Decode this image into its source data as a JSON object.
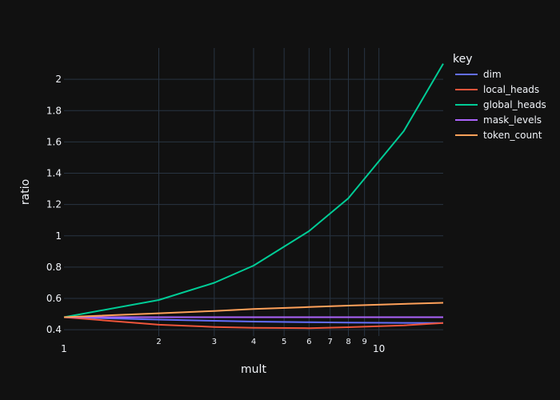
{
  "chart_data": {
    "type": "line",
    "xlabel": "mult",
    "ylabel": "ratio",
    "x_scale": "log",
    "xlim": [
      1,
      16
    ],
    "ylim": [
      0.36,
      2.2
    ],
    "grid": true,
    "background": "#111111",
    "legend": {
      "title": "key",
      "position": "right"
    },
    "x_ticks": [
      {
        "v": 1,
        "label": "1",
        "minor": false
      },
      {
        "v": 2,
        "label": "2",
        "minor": true
      },
      {
        "v": 3,
        "label": "3",
        "minor": true
      },
      {
        "v": 4,
        "label": "4",
        "minor": true
      },
      {
        "v": 5,
        "label": "5",
        "minor": true
      },
      {
        "v": 6,
        "label": "6",
        "minor": true
      },
      {
        "v": 7,
        "label": "7",
        "minor": true
      },
      {
        "v": 8,
        "label": "8",
        "minor": true
      },
      {
        "v": 9,
        "label": "9",
        "minor": true
      },
      {
        "v": 10,
        "label": "10",
        "minor": false
      }
    ],
    "y_ticks": [
      {
        "v": 0.4,
        "label": "0.4"
      },
      {
        "v": 0.6,
        "label": "0.6"
      },
      {
        "v": 0.8,
        "label": "0.8"
      },
      {
        "v": 1.0,
        "label": "1"
      },
      {
        "v": 1.2,
        "label": "1.2"
      },
      {
        "v": 1.4,
        "label": "1.4"
      },
      {
        "v": 1.6,
        "label": "1.6"
      },
      {
        "v": 1.8,
        "label": "1.8"
      },
      {
        "v": 2.0,
        "label": "2"
      }
    ],
    "x": [
      1,
      2,
      3,
      4,
      6,
      8,
      12,
      16
    ],
    "series": [
      {
        "name": "dim",
        "color": "#636efa",
        "values": [
          0.48,
          0.465,
          0.457,
          0.452,
          0.448,
          0.446,
          0.444,
          0.443
        ]
      },
      {
        "name": "local_heads",
        "color": "#ef553b",
        "values": [
          0.48,
          0.432,
          0.418,
          0.412,
          0.41,
          0.416,
          0.428,
          0.443
        ]
      },
      {
        "name": "global_heads",
        "color": "#00cc96",
        "values": [
          0.48,
          0.59,
          0.7,
          0.81,
          1.03,
          1.24,
          1.67,
          2.1
        ]
      },
      {
        "name": "mask_levels",
        "color": "#ab63fa",
        "values": [
          0.48,
          0.48,
          0.48,
          0.48,
          0.48,
          0.48,
          0.48,
          0.48
        ]
      },
      {
        "name": "token_count",
        "color": "#ffa15a",
        "values": [
          0.48,
          0.505,
          0.52,
          0.532,
          0.545,
          0.554,
          0.565,
          0.572
        ]
      }
    ]
  }
}
